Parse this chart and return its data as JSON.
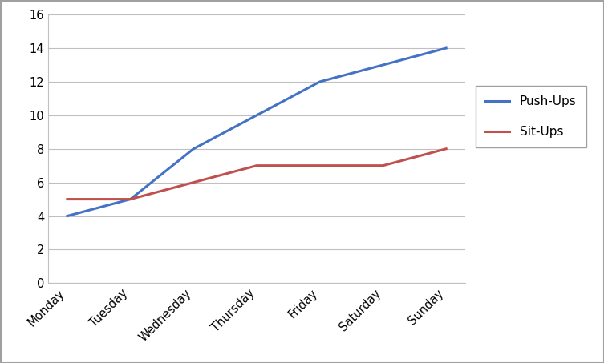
{
  "days": [
    "Monday",
    "Tuesday",
    "Wednesday",
    "Thursday",
    "Friday",
    "Saturday",
    "Sunday"
  ],
  "pushups": [
    4,
    5,
    8,
    10,
    12,
    13,
    14
  ],
  "situps": [
    5,
    5,
    6,
    7,
    7,
    7,
    8
  ],
  "pushups_color": "#4472C4",
  "situps_color": "#C0504D",
  "pushups_label": "Push-Ups",
  "situps_label": "Sit-Ups",
  "ylim": [
    0,
    16
  ],
  "yticks": [
    0,
    2,
    4,
    6,
    8,
    10,
    12,
    14,
    16
  ],
  "line_width": 2.2,
  "background_color": "#ffffff",
  "grid_color": "#c0c0c0",
  "legend_fontsize": 11,
  "tick_fontsize": 10.5,
  "border_color": "#a0a0a0"
}
